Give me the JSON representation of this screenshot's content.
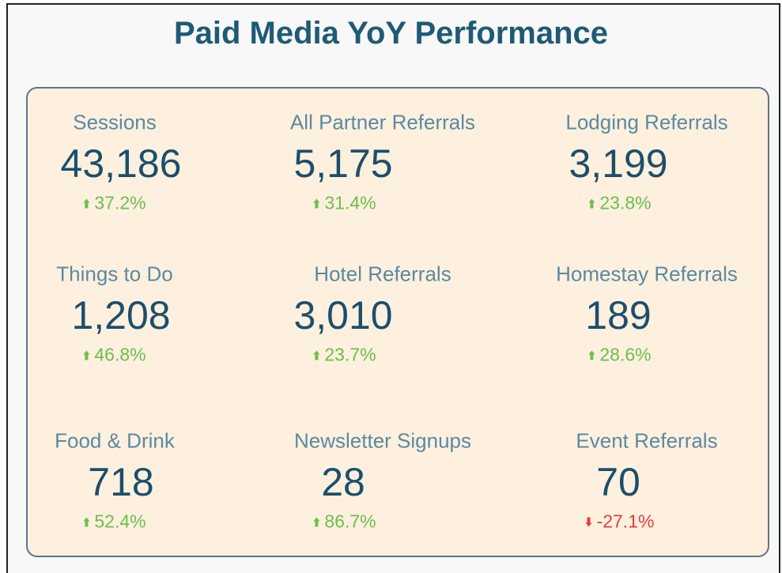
{
  "header": {
    "title": "Paid Media YoY Performance"
  },
  "metrics": [
    {
      "label": "Sessions",
      "value": "43,186",
      "change": "37.2%"
    },
    {
      "label": "All Partner Referrals",
      "value": "5,175",
      "change": "31.4%"
    },
    {
      "label": "Lodging Referrals",
      "value": "3,199",
      "change": "23.8%"
    },
    {
      "label": "Things to Do",
      "value": "1,208",
      "change": "46.8%"
    },
    {
      "label": "Hotel Referrals",
      "value": "3,010",
      "change": "23.7%"
    },
    {
      "label": "Homestay Referrals",
      "value": "189",
      "change": "28.6%"
    },
    {
      "label": "Food & Drink",
      "value": "718",
      "change": "52.4%"
    },
    {
      "label": "Newsletter Signups",
      "value": "28",
      "change": "86.7%"
    },
    {
      "label": "Event Referrals",
      "value": "70",
      "change": "-27.1%"
    }
  ]
}
